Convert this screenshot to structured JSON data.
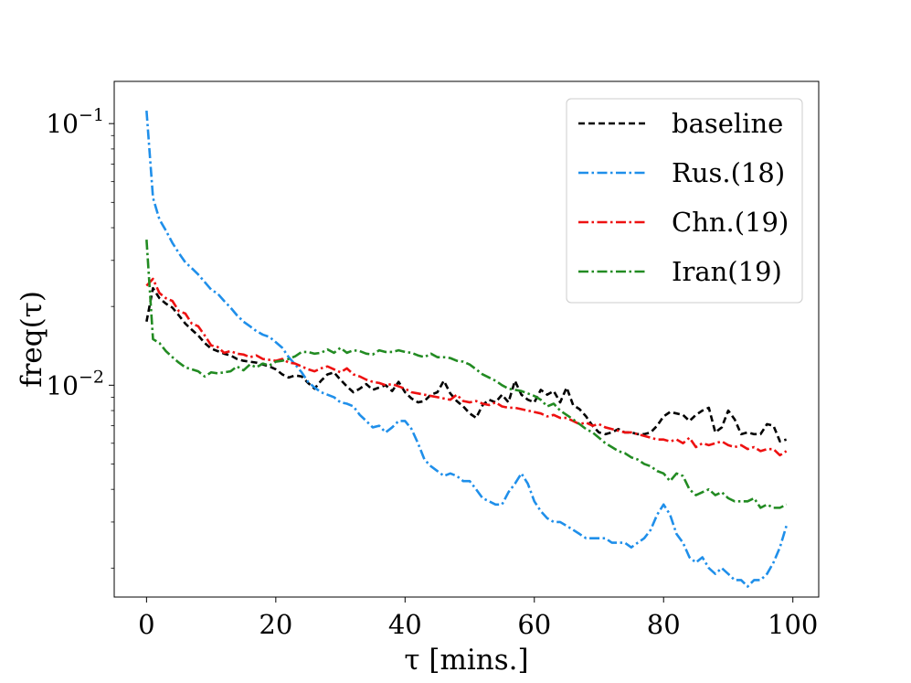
{
  "chart_data": {
    "type": "line",
    "xlabel": "τ [mins.]",
    "ylabel": "freq(τ)",
    "xlim": [
      -5,
      104
    ],
    "ylim": [
      0.00155,
      0.145
    ],
    "yscale": "log",
    "x_ticks": [
      0,
      20,
      40,
      60,
      80,
      100
    ],
    "x_tick_labels": [
      "0",
      "20",
      "40",
      "60",
      "80",
      "100"
    ],
    "y_ticks": [
      0.1,
      0.01
    ],
    "y_tick_labels": [
      {
        "base": "10",
        "exp": "−1"
      },
      {
        "base": "10",
        "exp": "−2"
      }
    ],
    "grid": false,
    "legend_position": "top-right",
    "series": [
      {
        "name": "baseline",
        "color": "#000000",
        "dash": "dashed",
        "x": [
          0,
          1,
          2,
          3,
          4,
          5,
          6,
          7,
          8,
          9,
          10,
          11,
          12,
          13,
          14,
          15,
          16,
          17,
          18,
          19,
          20,
          21,
          22,
          23,
          24,
          25,
          26,
          27,
          28,
          29,
          30,
          31,
          32,
          33,
          34,
          35,
          36,
          37,
          38,
          39,
          40,
          41,
          42,
          43,
          44,
          45,
          46,
          47,
          48,
          49,
          50,
          51,
          52,
          53,
          54,
          55,
          56,
          57,
          58,
          59,
          60,
          61,
          62,
          63,
          64,
          65,
          66,
          67,
          68,
          69,
          70,
          71,
          72,
          73,
          74,
          75,
          76,
          77,
          78,
          79,
          80,
          81,
          82,
          83,
          84,
          85,
          86,
          87,
          88,
          89,
          90,
          91,
          92,
          93,
          94,
          95,
          96,
          97,
          98,
          99
        ],
        "y": [
          0.0175,
          0.0235,
          0.0215,
          0.0205,
          0.0198,
          0.0185,
          0.0172,
          0.0163,
          0.0155,
          0.0145,
          0.0138,
          0.0135,
          0.0132,
          0.013,
          0.0126,
          0.0124,
          0.0123,
          0.0122,
          0.012,
          0.0118,
          0.0115,
          0.011,
          0.0107,
          0.0109,
          0.0108,
          0.0102,
          0.0097,
          0.0104,
          0.011,
          0.0112,
          0.0105,
          0.0099,
          0.0094,
          0.0097,
          0.0101,
          0.0096,
          0.0098,
          0.01,
          0.0095,
          0.0103,
          0.0094,
          0.0089,
          0.0086,
          0.0087,
          0.0092,
          0.0094,
          0.0104,
          0.0093,
          0.0087,
          0.0083,
          0.0078,
          0.0075,
          0.0084,
          0.0088,
          0.0086,
          0.0092,
          0.0086,
          0.0104,
          0.0092,
          0.0088,
          0.0086,
          0.0096,
          0.0092,
          0.0095,
          0.0086,
          0.0098,
          0.0084,
          0.0081,
          0.0076,
          0.007,
          0.0066,
          0.0065,
          0.0066,
          0.0068,
          0.0066,
          0.0066,
          0.0065,
          0.0065,
          0.0066,
          0.007,
          0.0076,
          0.0079,
          0.0078,
          0.0077,
          0.0073,
          0.0077,
          0.008,
          0.0082,
          0.0066,
          0.0069,
          0.008,
          0.0074,
          0.0065,
          0.0066,
          0.0065,
          0.0065,
          0.0071,
          0.007,
          0.0061,
          0.0062
        ]
      },
      {
        "name": "Rus.(18)",
        "color": "#1f8fea",
        "dash": "dashdot",
        "x": [
          0,
          1,
          2,
          3,
          4,
          5,
          6,
          7,
          8,
          9,
          10,
          11,
          12,
          13,
          14,
          15,
          16,
          17,
          18,
          19,
          20,
          21,
          22,
          23,
          24,
          25,
          26,
          27,
          28,
          29,
          30,
          31,
          32,
          33,
          34,
          35,
          36,
          37,
          38,
          39,
          40,
          41,
          42,
          43,
          44,
          45,
          46,
          47,
          48,
          49,
          50,
          51,
          52,
          53,
          54,
          55,
          56,
          57,
          58,
          59,
          60,
          61,
          62,
          63,
          64,
          65,
          66,
          67,
          68,
          69,
          70,
          71,
          72,
          73,
          74,
          75,
          76,
          77,
          78,
          79,
          80,
          81,
          82,
          83,
          84,
          85,
          86,
          87,
          88,
          89,
          90,
          91,
          92,
          93,
          94,
          95,
          96,
          97,
          98,
          99
        ],
        "y": [
          0.112,
          0.052,
          0.043,
          0.039,
          0.035,
          0.032,
          0.0295,
          0.028,
          0.0265,
          0.0248,
          0.0232,
          0.0224,
          0.021,
          0.0198,
          0.0185,
          0.0175,
          0.0168,
          0.0161,
          0.0156,
          0.0153,
          0.0146,
          0.0139,
          0.0128,
          0.012,
          0.0112,
          0.0103,
          0.0098,
          0.0094,
          0.0092,
          0.009,
          0.0086,
          0.0085,
          0.0083,
          0.0077,
          0.0073,
          0.0069,
          0.007,
          0.0066,
          0.0069,
          0.0073,
          0.0073,
          0.0068,
          0.006,
          0.0052,
          0.0049,
          0.0047,
          0.0045,
          0.0046,
          0.0045,
          0.0043,
          0.0043,
          0.004,
          0.0037,
          0.0036,
          0.0035,
          0.0035,
          0.0039,
          0.0042,
          0.0046,
          0.0042,
          0.0036,
          0.0033,
          0.0031,
          0.003,
          0.003,
          0.0029,
          0.0028,
          0.0027,
          0.0026,
          0.0026,
          0.0026,
          0.0026,
          0.0025,
          0.0025,
          0.0025,
          0.0024,
          0.0025,
          0.0026,
          0.0028,
          0.0032,
          0.0035,
          0.0032,
          0.0027,
          0.0025,
          0.0022,
          0.0021,
          0.0022,
          0.002,
          0.0019,
          0.002,
          0.0019,
          0.0018,
          0.0018,
          0.0017,
          0.0018,
          0.0018,
          0.0019,
          0.0021,
          0.0024,
          0.0029
        ]
      },
      {
        "name": "Chn.(19)",
        "color": "#ee1111",
        "dash": "dashdot",
        "x": [
          0,
          1,
          2,
          3,
          4,
          5,
          6,
          7,
          8,
          9,
          10,
          11,
          12,
          13,
          14,
          15,
          16,
          17,
          18,
          19,
          20,
          21,
          22,
          23,
          24,
          25,
          26,
          27,
          28,
          29,
          30,
          31,
          32,
          33,
          34,
          35,
          36,
          37,
          38,
          39,
          40,
          41,
          42,
          43,
          44,
          45,
          46,
          47,
          48,
          49,
          50,
          51,
          52,
          53,
          54,
          55,
          56,
          57,
          58,
          59,
          60,
          61,
          62,
          63,
          64,
          65,
          66,
          67,
          68,
          69,
          70,
          71,
          72,
          73,
          74,
          75,
          76,
          77,
          78,
          79,
          80,
          81,
          82,
          83,
          84,
          85,
          86,
          87,
          88,
          89,
          90,
          91,
          92,
          93,
          94,
          95,
          96,
          97,
          98,
          99
        ],
        "y": [
          0.024,
          0.0255,
          0.0225,
          0.0215,
          0.021,
          0.0192,
          0.0188,
          0.0172,
          0.0168,
          0.0155,
          0.0142,
          0.014,
          0.0133,
          0.0135,
          0.0132,
          0.0131,
          0.0128,
          0.013,
          0.0126,
          0.0125,
          0.0124,
          0.0126,
          0.0122,
          0.0121,
          0.0118,
          0.0115,
          0.0113,
          0.0116,
          0.0118,
          0.0115,
          0.0112,
          0.0116,
          0.011,
          0.0108,
          0.0105,
          0.0103,
          0.0102,
          0.01,
          0.0101,
          0.0099,
          0.0097,
          0.0094,
          0.0093,
          0.0092,
          0.0091,
          0.009,
          0.0089,
          0.0088,
          0.0092,
          0.0087,
          0.0086,
          0.0087,
          0.0085,
          0.0084,
          0.0086,
          0.0083,
          0.0082,
          0.0082,
          0.0081,
          0.008,
          0.0079,
          0.0078,
          0.0076,
          0.0077,
          0.0075,
          0.0075,
          0.0073,
          0.0071,
          0.0072,
          0.007,
          0.0071,
          0.0069,
          0.0068,
          0.0067,
          0.0066,
          0.0066,
          0.0065,
          0.0064,
          0.0063,
          0.0062,
          0.0062,
          0.0061,
          0.0062,
          0.006,
          0.0063,
          0.0058,
          0.006,
          0.0059,
          0.006,
          0.0061,
          0.0059,
          0.0058,
          0.0059,
          0.0057,
          0.0058,
          0.0056,
          0.0057,
          0.0057,
          0.0054,
          0.0056
        ]
      },
      {
        "name": "Iran(19)",
        "color": "#228b22",
        "dash": "dashdot",
        "x": [
          0,
          1,
          2,
          3,
          4,
          5,
          6,
          7,
          8,
          9,
          10,
          11,
          12,
          13,
          14,
          15,
          16,
          17,
          18,
          19,
          20,
          21,
          22,
          23,
          24,
          25,
          26,
          27,
          28,
          29,
          30,
          31,
          32,
          33,
          34,
          35,
          36,
          37,
          38,
          39,
          40,
          41,
          42,
          43,
          44,
          45,
          46,
          47,
          48,
          49,
          50,
          51,
          52,
          53,
          54,
          55,
          56,
          57,
          58,
          59,
          60,
          61,
          62,
          63,
          64,
          65,
          66,
          67,
          68,
          69,
          70,
          71,
          72,
          73,
          74,
          75,
          76,
          77,
          78,
          79,
          80,
          81,
          82,
          83,
          84,
          85,
          86,
          87,
          88,
          89,
          90,
          91,
          92,
          93,
          94,
          95,
          96,
          97,
          98,
          99
        ],
        "y": [
          0.036,
          0.015,
          0.0145,
          0.0135,
          0.0128,
          0.0122,
          0.0117,
          0.0115,
          0.0113,
          0.0108,
          0.0112,
          0.0111,
          0.0112,
          0.0113,
          0.0118,
          0.0114,
          0.012,
          0.0117,
          0.0121,
          0.0119,
          0.0123,
          0.0124,
          0.0126,
          0.0129,
          0.0134,
          0.0134,
          0.0132,
          0.0133,
          0.0137,
          0.0133,
          0.0139,
          0.0133,
          0.0136,
          0.0135,
          0.0132,
          0.0131,
          0.0136,
          0.0134,
          0.0134,
          0.0136,
          0.0134,
          0.0133,
          0.013,
          0.0128,
          0.0132,
          0.0128,
          0.0128,
          0.0127,
          0.0124,
          0.0123,
          0.012,
          0.0115,
          0.011,
          0.0107,
          0.0104,
          0.01,
          0.0097,
          0.0096,
          0.0095,
          0.0093,
          0.0091,
          0.0088,
          0.0083,
          0.0085,
          0.008,
          0.0077,
          0.0074,
          0.0071,
          0.0068,
          0.0066,
          0.0063,
          0.006,
          0.0058,
          0.0056,
          0.0055,
          0.0053,
          0.0052,
          0.005,
          0.0049,
          0.0047,
          0.0046,
          0.0043,
          0.0046,
          0.0045,
          0.004,
          0.0038,
          0.0039,
          0.004,
          0.0038,
          0.0039,
          0.0037,
          0.0036,
          0.0036,
          0.0036,
          0.0037,
          0.0034,
          0.0035,
          0.0034,
          0.0034,
          0.0035
        ]
      }
    ]
  }
}
